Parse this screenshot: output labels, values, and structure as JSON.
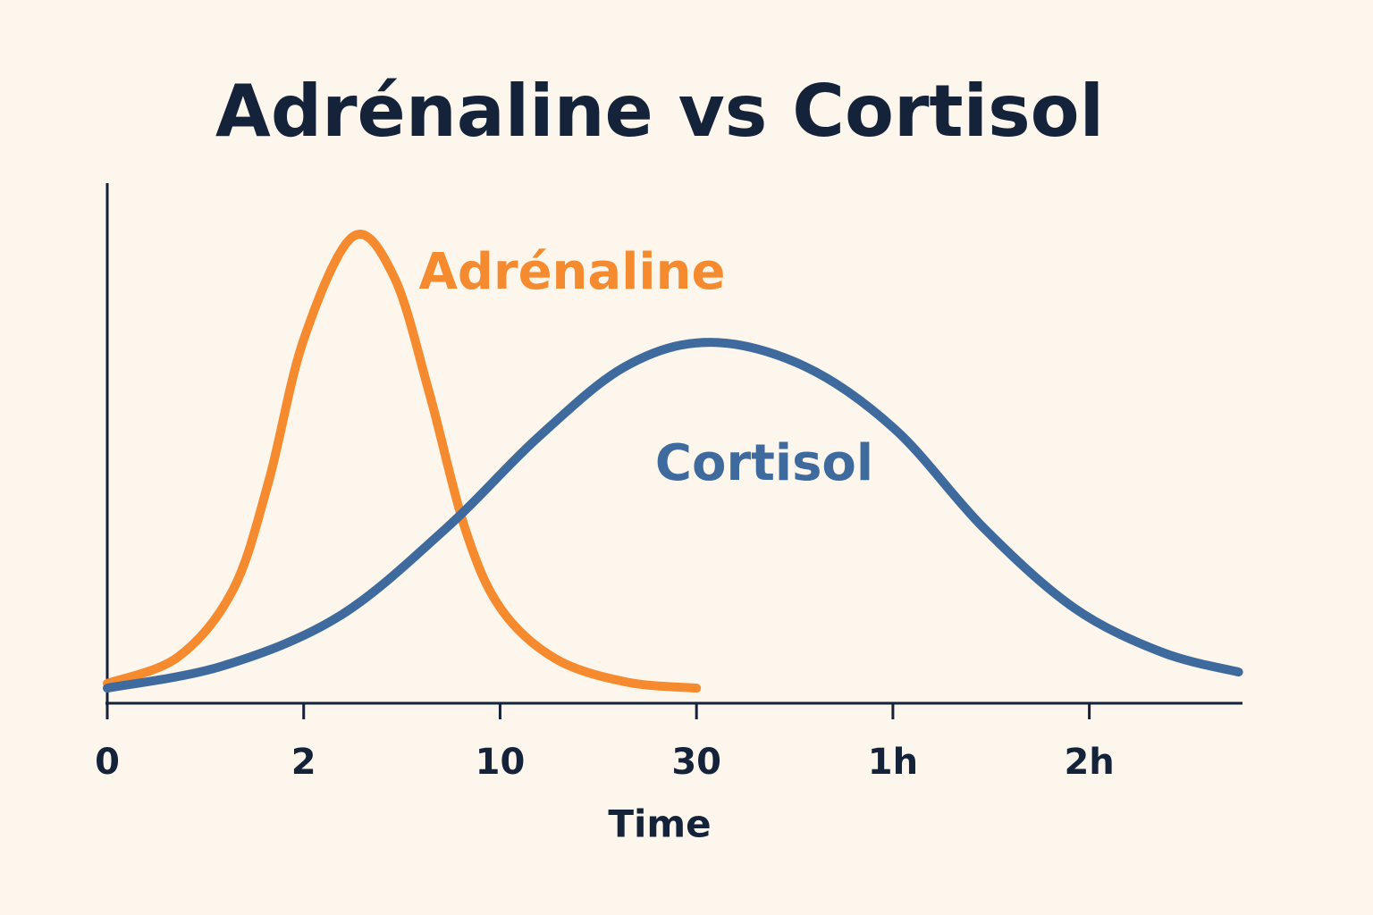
{
  "chart_data": {
    "type": "line",
    "title": "Adrénaline vs Cortisol",
    "x_label": "Time",
    "xlim": [
      0,
      5.78
    ],
    "ylim": [
      0,
      100
    ],
    "xticks": [
      0,
      {
        "value": 1,
        "label": "2"
      },
      {
        "value": 2,
        "label": "10"
      },
      {
        "value": 3,
        "label": "30"
      },
      {
        "value": 4,
        "label": "1h"
      },
      {
        "value": 5,
        "label": "2h"
      }
    ],
    "series": [
      {
        "name": "Adrénaline",
        "color": "#f58a2e",
        "x": [
          0,
          0.36,
          0.64,
          0.82,
          1.0,
          1.25,
          1.46,
          1.64,
          1.82,
          2.0,
          2.28,
          2.64,
          3.0
        ],
        "values": [
          3.8,
          8.9,
          21.8,
          42.4,
          69.9,
          89.7,
          82,
          59.6,
          33.8,
          18.4,
          8.6,
          4.1,
          2.9
        ]
      },
      {
        "name": "Cortisol",
        "color": "#3e6a9e",
        "x": [
          0,
          0.59,
          1.18,
          1.73,
          2.19,
          2.64,
          3.07,
          3.55,
          4.01,
          4.46,
          4.92,
          5.37,
          5.76
        ],
        "values": [
          2.9,
          7.2,
          16.7,
          33.8,
          51,
          64.8,
          69.4,
          64.8,
          52.7,
          33.8,
          18.4,
          9.8,
          6
        ]
      }
    ]
  }
}
